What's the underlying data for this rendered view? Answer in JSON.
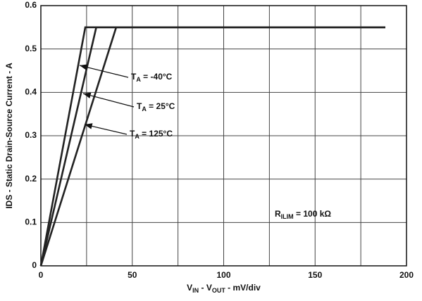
{
  "chart_data": {
    "type": "line",
    "x_label": [
      {
        "text": "V"
      },
      {
        "text": "IN",
        "sub": true
      },
      {
        "text": " - V"
      },
      {
        "text": "OUT",
        "sub": true
      },
      {
        "text": " - mV/div"
      }
    ],
    "y_label": "IDS - Static Drain-Source Current - A",
    "xlim": [
      0,
      200
    ],
    "xticks": [
      0,
      50,
      100,
      150,
      200
    ],
    "x_minor_ticks": [
      25,
      75,
      125,
      175
    ],
    "ylim": [
      0,
      0.6
    ],
    "yticks": [
      0,
      0.1,
      0.2,
      0.3,
      0.4,
      0.5,
      0.6
    ],
    "grid": true,
    "series": [
      {
        "name": [
          {
            "text": "T"
          },
          {
            "text": "A",
            "sub": true
          },
          {
            "text": " = -40°C"
          }
        ],
        "color": "#222222",
        "x": [
          0,
          24.3,
          188.4
        ],
        "values": [
          0,
          0.55,
          0.55
        ]
      },
      {
        "name": [
          {
            "text": "T"
          },
          {
            "text": "A",
            "sub": true
          },
          {
            "text": " = 25°C"
          }
        ],
        "color": "#222222",
        "x": [
          0,
          30.3,
          188.4
        ],
        "values": [
          0,
          0.55,
          0.55
        ]
      },
      {
        "name": [
          {
            "text": "T"
          },
          {
            "text": "A",
            "sub": true
          },
          {
            "text": " = 125°C"
          }
        ],
        "color": "#222222",
        "x": [
          0,
          41.2,
          188.4
        ],
        "values": [
          0,
          0.55,
          0.55
        ]
      }
    ],
    "annotation": [
      {
        "text": "R"
      },
      {
        "text": "ILIM",
        "sub": true
      },
      {
        "text": " = 100 kΩ"
      }
    ]
  }
}
